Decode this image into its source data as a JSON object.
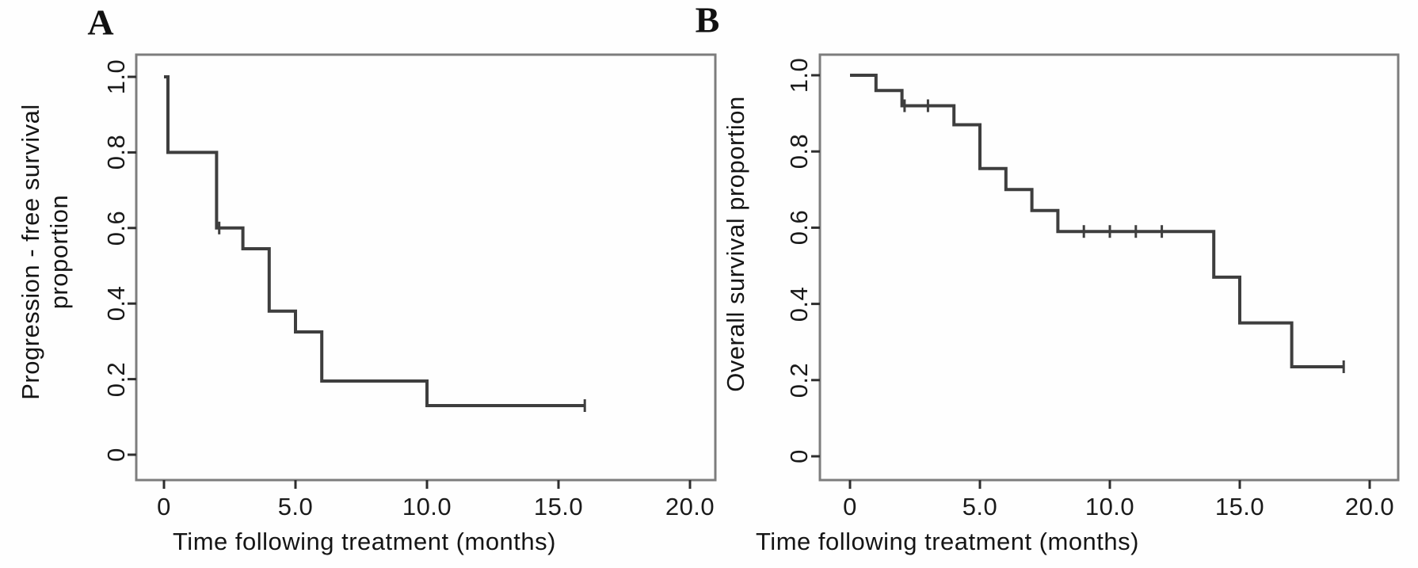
{
  "figure": {
    "background_color": "#fefefe",
    "panels": [
      {
        "letter": "A",
        "ylabel_line1": "Progression - free survival",
        "ylabel_line2": "proportion",
        "xlabel": "Time following treatment (months)"
      },
      {
        "letter": "B",
        "ylabel_line1": "Overall survival proportion",
        "ylabel_line2": "",
        "xlabel": "Time following treatment (months)"
      }
    ]
  },
  "chart_data": [
    {
      "type": "line",
      "subtype": "kaplan-meier-step",
      "panel": "A",
      "title": "A",
      "xlabel": "Time following treatment (months)",
      "ylabel": "Progression - free survival proportion",
      "xlim": [
        -1.05,
        21.0
      ],
      "ylim": [
        -0.067,
        1.06
      ],
      "grid": false,
      "legend": null,
      "xticks": [
        0,
        5,
        10,
        15,
        20
      ],
      "xtick_labels": [
        "0",
        "5.0",
        "10.0",
        "15.0",
        "20.0"
      ],
      "yticks": [
        0,
        0.2,
        0.4,
        0.6,
        0.8,
        1.0
      ],
      "ytick_labels": [
        "0",
        "0.2",
        "0.4",
        "0.6",
        "0.8",
        "1.0"
      ],
      "km_step_times": [
        0,
        0.15,
        2,
        3,
        4,
        5,
        6,
        10
      ],
      "km_step_survival": [
        1.0,
        0.8,
        0.6,
        0.545,
        0.38,
        0.325,
        0.195,
        0.13
      ],
      "km_end_time": 16,
      "censor_marks": [
        {
          "t": 2.1,
          "s": 0.6
        },
        {
          "t": 16,
          "s": 0.13
        }
      ],
      "line_color": "#3e3e3e",
      "box_color": "#7d7d7d",
      "tick_color": "#2e2e2e"
    },
    {
      "type": "line",
      "subtype": "kaplan-meier-step",
      "panel": "B",
      "title": "B",
      "xlabel": "Time following treatment (months)",
      "ylabel": "Overall survival proportion",
      "xlim": [
        -1.16,
        21.1
      ],
      "ylim": [
        -0.067,
        1.06
      ],
      "grid": false,
      "legend": null,
      "xticks": [
        0,
        5,
        10,
        15,
        20
      ],
      "xtick_labels": [
        "0",
        "5.0",
        "10.0",
        "15.0",
        "20.0"
      ],
      "yticks": [
        0,
        0.2,
        0.4,
        0.6,
        0.8,
        1.0
      ],
      "ytick_labels": [
        "0",
        "0.2",
        "0.4",
        "0.6",
        "0.8",
        "1.0"
      ],
      "km_step_times": [
        0,
        1,
        2,
        4,
        5,
        6,
        7,
        8,
        14,
        15,
        17
      ],
      "km_step_survival": [
        1.0,
        0.96,
        0.92,
        0.87,
        0.755,
        0.7,
        0.645,
        0.59,
        0.47,
        0.35,
        0.235
      ],
      "km_end_time": 19,
      "censor_marks": [
        {
          "t": 2.1,
          "s": 0.92
        },
        {
          "t": 3,
          "s": 0.92
        },
        {
          "t": 9,
          "s": 0.59
        },
        {
          "t": 10,
          "s": 0.59
        },
        {
          "t": 11,
          "s": 0.59
        },
        {
          "t": 12,
          "s": 0.59
        },
        {
          "t": 19,
          "s": 0.235
        }
      ],
      "line_color": "#3e3e3e",
      "box_color": "#7d7d7d",
      "tick_color": "#2e2e2e"
    }
  ]
}
